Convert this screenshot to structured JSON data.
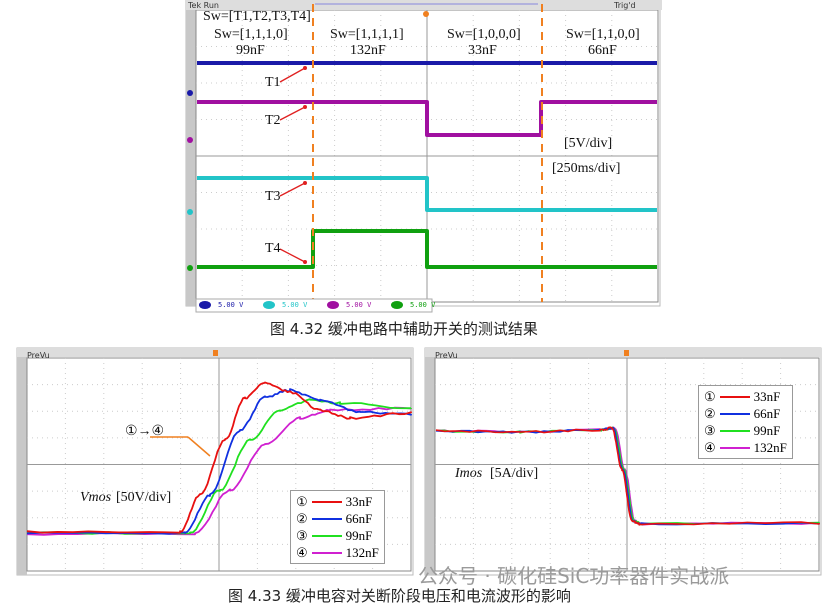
{
  "fig1": {
    "header_left": "Tek Run",
    "header_right": "Trig'd",
    "sw_def": "Sw=[T1,T2,T3,T4]",
    "segments": [
      {
        "sw": "Sw=[1,1,1,0]",
        "cap": "99nF"
      },
      {
        "sw": "Sw=[1,1,1,1]",
        "cap": "132nF"
      },
      {
        "sw": "Sw=[1,0,0,0]",
        "cap": "33nF"
      },
      {
        "sw": "Sw=[1,1,0,0]",
        "cap": "66nF"
      }
    ],
    "trace_labels": [
      "T1",
      "T2",
      "T3",
      "T4"
    ],
    "vdiv": "[5V/div]",
    "tdiv": "[250ms/div]",
    "channels": [
      {
        "num": "1",
        "scale": "5.00 V",
        "color": "#1a1aa8"
      },
      {
        "num": "2",
        "scale": "5.00 V",
        "color": "#22c4c8"
      },
      {
        "num": "3",
        "scale": "5.00 V",
        "color": "#a010a0"
      },
      {
        "num": "4",
        "scale": "5.00 V",
        "color": "#10a010"
      }
    ],
    "caption": "图 4.32  缓冲电路中辅助开关的测试结果"
  },
  "fig2": {
    "left": {
      "header": "PreVu",
      "arrow_label": "①→④",
      "label": "Vmos",
      "scale": "[50V/div]"
    },
    "right": {
      "header": "PreVu",
      "label": "Imos",
      "scale": "[5A/div]"
    },
    "legend": [
      {
        "mark": "①",
        "name": "33nF",
        "color": "#e81010"
      },
      {
        "mark": "②",
        "name": "66nF",
        "color": "#1030e0"
      },
      {
        "mark": "③",
        "name": "99nF",
        "color": "#20e020"
      },
      {
        "mark": "④",
        "name": "132nF",
        "color": "#d020d0"
      }
    ],
    "caption": "图 4.33  缓冲电容对关断阶段电压和电流波形的影响"
  },
  "watermark": "公众号 · 碳化硅SiC功率器件实战派",
  "accent": "#f08020"
}
